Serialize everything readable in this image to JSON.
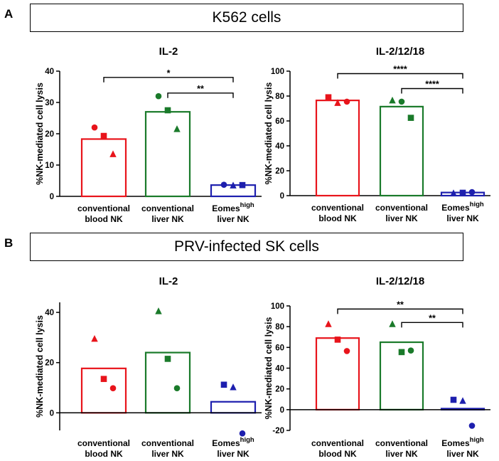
{
  "panels": [
    {
      "letter": "A",
      "banner": "K562 cells"
    },
    {
      "letter": "B",
      "banner": "PRV-infected SK cells"
    }
  ],
  "colors": {
    "red": "#e8141b",
    "green": "#1a7a2a",
    "blue": "#1d1fae",
    "black": "#000000"
  },
  "categories": [
    {
      "line1": "conventional",
      "line2": "blood NK"
    },
    {
      "line1": "conventional",
      "line2": "liver NK"
    },
    {
      "line1": "Eomes",
      "sup": "high",
      "line2": "liver NK"
    }
  ],
  "chart_data": [
    {
      "id": "A-IL2",
      "type": "bar",
      "title": "IL-2",
      "ylabel": "%NK-mediated cell lysis",
      "ylim": [
        0,
        40
      ],
      "yticks": [
        0,
        10,
        20,
        30,
        40
      ],
      "categories": [
        "conventional blood NK",
        "conventional liver NK",
        "Eomes high liver NK"
      ],
      "values": [
        18.3,
        27.0,
        3.6
      ],
      "points": [
        [
          {
            "shape": "circle",
            "y": 22.0
          },
          {
            "shape": "square",
            "y": 19.3
          },
          {
            "shape": "triangle",
            "y": 13.5
          }
        ],
        [
          {
            "shape": "circle",
            "y": 32.0
          },
          {
            "shape": "square",
            "y": 27.5
          },
          {
            "shape": "triangle",
            "y": 21.5
          }
        ],
        [
          {
            "shape": "circle",
            "y": 3.7
          },
          {
            "shape": "triangle",
            "y": 3.5
          },
          {
            "shape": "square",
            "y": 3.6
          }
        ]
      ],
      "zero_line": false,
      "significance": [
        {
          "from": 0,
          "to": 2,
          "label": "*",
          "y": 38.0
        },
        {
          "from": 1,
          "to": 2,
          "label": "**",
          "y": 33.0
        }
      ]
    },
    {
      "id": "A-IL21218",
      "type": "bar",
      "title": "IL-2/12/18",
      "ylabel": "%NK-mediated cell lysis",
      "ylim": [
        0,
        100
      ],
      "yticks": [
        0,
        20,
        40,
        60,
        80,
        100
      ],
      "categories": [
        "conventional blood NK",
        "conventional liver NK",
        "Eomes high liver NK"
      ],
      "values": [
        76.5,
        71.5,
        2.5
      ],
      "points": [
        [
          {
            "shape": "square",
            "y": 79.0
          },
          {
            "shape": "triangle",
            "y": 74.5
          },
          {
            "shape": "circle",
            "y": 75.5
          }
        ],
        [
          {
            "shape": "triangle",
            "y": 76.5
          },
          {
            "shape": "circle",
            "y": 75.5
          },
          {
            "shape": "square",
            "y": 62.5
          }
        ],
        [
          {
            "shape": "triangle",
            "y": 2.0
          },
          {
            "shape": "square",
            "y": 2.3
          },
          {
            "shape": "circle",
            "y": 2.8
          }
        ]
      ],
      "zero_line": false,
      "significance": [
        {
          "from": 0,
          "to": 2,
          "label": "****",
          "y": 98.0
        },
        {
          "from": 1,
          "to": 2,
          "label": "****",
          "y": 86.0
        }
      ]
    },
    {
      "id": "B-IL2",
      "type": "bar",
      "title": "IL-2",
      "ylabel": "%NK-mediated cell lysis",
      "ylim": [
        -7,
        44
      ],
      "yticks": [
        0,
        20,
        40
      ],
      "categories": [
        "conventional blood NK",
        "conventional liver NK",
        "Eomes high liver NK"
      ],
      "values": [
        17.7,
        24.0,
        4.4
      ],
      "points": [
        [
          {
            "shape": "triangle",
            "y": 29.5
          },
          {
            "shape": "square",
            "y": 13.5
          },
          {
            "shape": "circle",
            "y": 9.8
          }
        ],
        [
          {
            "shape": "triangle",
            "y": 40.5
          },
          {
            "shape": "square",
            "y": 21.5
          },
          {
            "shape": "circle",
            "y": 9.8
          }
        ],
        [
          {
            "shape": "square",
            "y": 11.2
          },
          {
            "shape": "triangle",
            "y": 10.2
          },
          {
            "shape": "circle",
            "y": -8.2
          }
        ]
      ],
      "zero_line": true,
      "significance": []
    },
    {
      "id": "B-IL21218",
      "type": "bar",
      "title": "IL-2/12/18",
      "ylabel": "%NK-mediated cell lysis",
      "ylim": [
        -20,
        100
      ],
      "yticks": [
        -20,
        0,
        20,
        40,
        60,
        80,
        100
      ],
      "categories": [
        "conventional blood NK",
        "conventional liver NK",
        "Eomes high liver NK"
      ],
      "values": [
        69.0,
        65.0,
        1.0
      ],
      "points": [
        [
          {
            "shape": "triangle",
            "y": 82.5
          },
          {
            "shape": "square",
            "y": 67.5
          },
          {
            "shape": "circle",
            "y": 56.5
          }
        ],
        [
          {
            "shape": "triangle",
            "y": 82.5
          },
          {
            "shape": "square",
            "y": 55.5
          },
          {
            "shape": "circle",
            "y": 57.0
          }
        ],
        [
          {
            "shape": "square",
            "y": 9.5
          },
          {
            "shape": "triangle",
            "y": 8.5
          },
          {
            "shape": "circle",
            "y": -15.5
          }
        ]
      ],
      "zero_line": true,
      "significance": [
        {
          "from": 0,
          "to": 2,
          "label": "**",
          "y": 97.0
        },
        {
          "from": 1,
          "to": 2,
          "label": "**",
          "y": 84.0
        }
      ]
    }
  ]
}
